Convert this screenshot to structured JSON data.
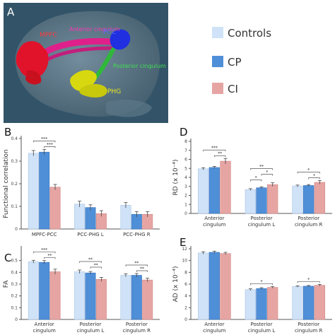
{
  "panel_a": {
    "letter": "A",
    "labels": {
      "mpfc": "MPFC",
      "anterior": "Anterior cingulum",
      "pcc": "PCC",
      "posterior": "Posterior cingulum",
      "phg": "PHG"
    }
  },
  "legend": {
    "items": [
      {
        "label": "Controls",
        "color": "#cfe2f7"
      },
      {
        "label": "CP",
        "color": "#4f8fd8"
      },
      {
        "label": "CI",
        "color": "#e6a5a3"
      }
    ]
  },
  "chart_data": [
    {
      "id": "B",
      "letter": "B",
      "type": "bar",
      "ylabel": "Functional correlation",
      "ylim": [
        0,
        0.4
      ],
      "yticks": [
        0,
        0.1,
        0.2,
        0.3,
        0.4
      ],
      "categories": [
        "MPFC-PCC",
        "PCC-PHG L",
        "PCC-PHG R"
      ],
      "series": [
        {
          "name": "Controls",
          "values": [
            0.335,
            0.11,
            0.105
          ]
        },
        {
          "name": "CP",
          "values": [
            0.34,
            0.095,
            0.065
          ]
        },
        {
          "name": "CI",
          "values": [
            0.185,
            0.068,
            0.065
          ]
        }
      ],
      "errors": [
        [
          0.012,
          0.013,
          0.012
        ],
        [
          0.012,
          0.012,
          0.012
        ],
        [
          0.012,
          0.013,
          0.012
        ]
      ],
      "significance": [
        {
          "category": 0,
          "from": 0,
          "to": 2,
          "label": "***"
        },
        {
          "category": 0,
          "from": 1,
          "to": 2,
          "label": "***"
        }
      ]
    },
    {
      "id": "D",
      "letter": "D",
      "type": "bar",
      "ylabel": "RD (x 10⁻⁴)",
      "ylim": [
        0,
        8
      ],
      "yticks": [
        0,
        1,
        2,
        3,
        4,
        5,
        6,
        7,
        8
      ],
      "categories": [
        "Anterior cingulum",
        "Posterior cingulum L",
        "Posterior cingulum R"
      ],
      "series": [
        {
          "name": "Controls",
          "values": [
            4.95,
            2.65,
            3.05
          ]
        },
        {
          "name": "CP",
          "values": [
            5.1,
            2.85,
            3.1
          ]
        },
        {
          "name": "CI",
          "values": [
            5.8,
            3.2,
            3.45
          ]
        }
      ],
      "errors": [
        [
          0.12,
          0.1,
          0.1
        ],
        [
          0.12,
          0.1,
          0.1
        ],
        [
          0.3,
          0.2,
          0.2
        ]
      ],
      "significance": [
        {
          "category": 0,
          "from": 0,
          "to": 2,
          "label": "***"
        },
        {
          "category": 0,
          "from": 1,
          "to": 2,
          "label": "**"
        },
        {
          "category": 1,
          "from": 0,
          "to": 2,
          "label": "**"
        },
        {
          "category": 1,
          "from": 0,
          "to": 1,
          "label": "*"
        },
        {
          "category": 1,
          "from": 1,
          "to": 2,
          "label": "*"
        },
        {
          "category": 2,
          "from": 0,
          "to": 2,
          "label": "*"
        },
        {
          "category": 2,
          "from": 1,
          "to": 2,
          "label": "*"
        }
      ]
    },
    {
      "id": "C",
      "letter": "C",
      "type": "bar",
      "ylabel": "FA",
      "ylim": [
        0,
        0.6
      ],
      "yticks": [
        0,
        0.1,
        0.2,
        0.3,
        0.4,
        0.5
      ],
      "categories": [
        "Anterior cingulum",
        "Posterior cingulum L",
        "Posterior cingulum R"
      ],
      "series": [
        {
          "name": "Controls",
          "values": [
            0.49,
            0.405,
            0.375
          ]
        },
        {
          "name": "CP",
          "values": [
            0.485,
            0.395,
            0.375
          ]
        },
        {
          "name": "CI",
          "values": [
            0.405,
            0.34,
            0.335
          ]
        }
      ],
      "errors": [
        [
          0.012,
          0.015,
          0.013
        ],
        [
          0.015,
          0.012,
          0.015
        ],
        [
          0.022,
          0.017,
          0.015
        ]
      ],
      "significance": [
        {
          "category": 0,
          "from": 0,
          "to": 2,
          "label": "***"
        },
        {
          "category": 0,
          "from": 1,
          "to": 2,
          "label": "**"
        },
        {
          "category": 1,
          "from": 0,
          "to": 2,
          "label": "**"
        },
        {
          "category": 1,
          "from": 1,
          "to": 2,
          "label": "**"
        },
        {
          "category": 2,
          "from": 0,
          "to": 2,
          "label": "**"
        },
        {
          "category": 2,
          "from": 1,
          "to": 2,
          "label": "**"
        }
      ]
    },
    {
      "id": "E",
      "letter": "E",
      "type": "bar",
      "ylabel": "AD (x 10⁻⁴)",
      "ylim": [
        0,
        12
      ],
      "yticks": [
        0,
        2,
        4,
        6,
        8,
        10,
        12
      ],
      "categories": [
        "Anterior cingulum",
        "Posterior cingulum L",
        "Posterior cingulum R"
      ],
      "series": [
        {
          "name": "Controls",
          "values": [
            11.3,
            5.05,
            5.6
          ]
        },
        {
          "name": "CP",
          "values": [
            11.4,
            5.25,
            5.65
          ]
        },
        {
          "name": "CI",
          "values": [
            11.2,
            5.45,
            5.8
          ]
        }
      ],
      "errors": [
        [
          0.2,
          0.15,
          0.12
        ],
        [
          0.2,
          0.15,
          0.12
        ],
        [
          0.2,
          0.15,
          0.15
        ]
      ],
      "significance": [
        {
          "category": 1,
          "from": 0,
          "to": 2,
          "label": "*"
        },
        {
          "category": 2,
          "from": 0,
          "to": 2,
          "label": "*"
        }
      ]
    }
  ]
}
